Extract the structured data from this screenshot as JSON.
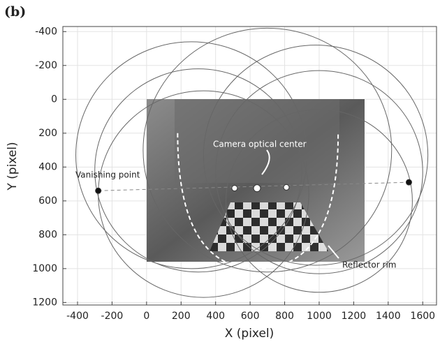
{
  "chart_data": {
    "type": "scatter",
    "panel_label": "(b)",
    "x_label": "X (pixel)",
    "y_label": "Y (pixel)",
    "xlim": [
      -485,
      1680
    ],
    "ylim": [
      -430,
      1215
    ],
    "y_inverted": true,
    "xticks": [
      -400,
      -200,
      0,
      200,
      400,
      600,
      800,
      1000,
      1200,
      1400,
      1600
    ],
    "yticks": [
      -400,
      -200,
      0,
      200,
      400,
      600,
      800,
      1000,
      1200
    ],
    "grid": true,
    "circles": [
      {
        "cx": 260,
        "cy": 330,
        "r": 670
      },
      {
        "cx": 300,
        "cy": 420,
        "r": 600
      },
      {
        "cx": 330,
        "cy": 560,
        "r": 610
      },
      {
        "cx": 700,
        "cy": 300,
        "r": 720
      },
      {
        "cx": 980,
        "cy": 330,
        "r": 650
      },
      {
        "cx": 1000,
        "cy": 430,
        "r": 600
      },
      {
        "cx": 1000,
        "cy": 600,
        "r": 540
      }
    ],
    "series": [
      {
        "name": "Vanishing point",
        "color": "#111111",
        "x": [
          -280,
          1520
        ],
        "y": [
          540,
          490
        ]
      },
      {
        "name": "Camera optical center",
        "color": "#ffffff",
        "x": [
          510,
          640,
          810
        ],
        "y": [
          525,
          525,
          520
        ]
      }
    ],
    "annotations": [
      "Reflector rim"
    ]
  }
}
